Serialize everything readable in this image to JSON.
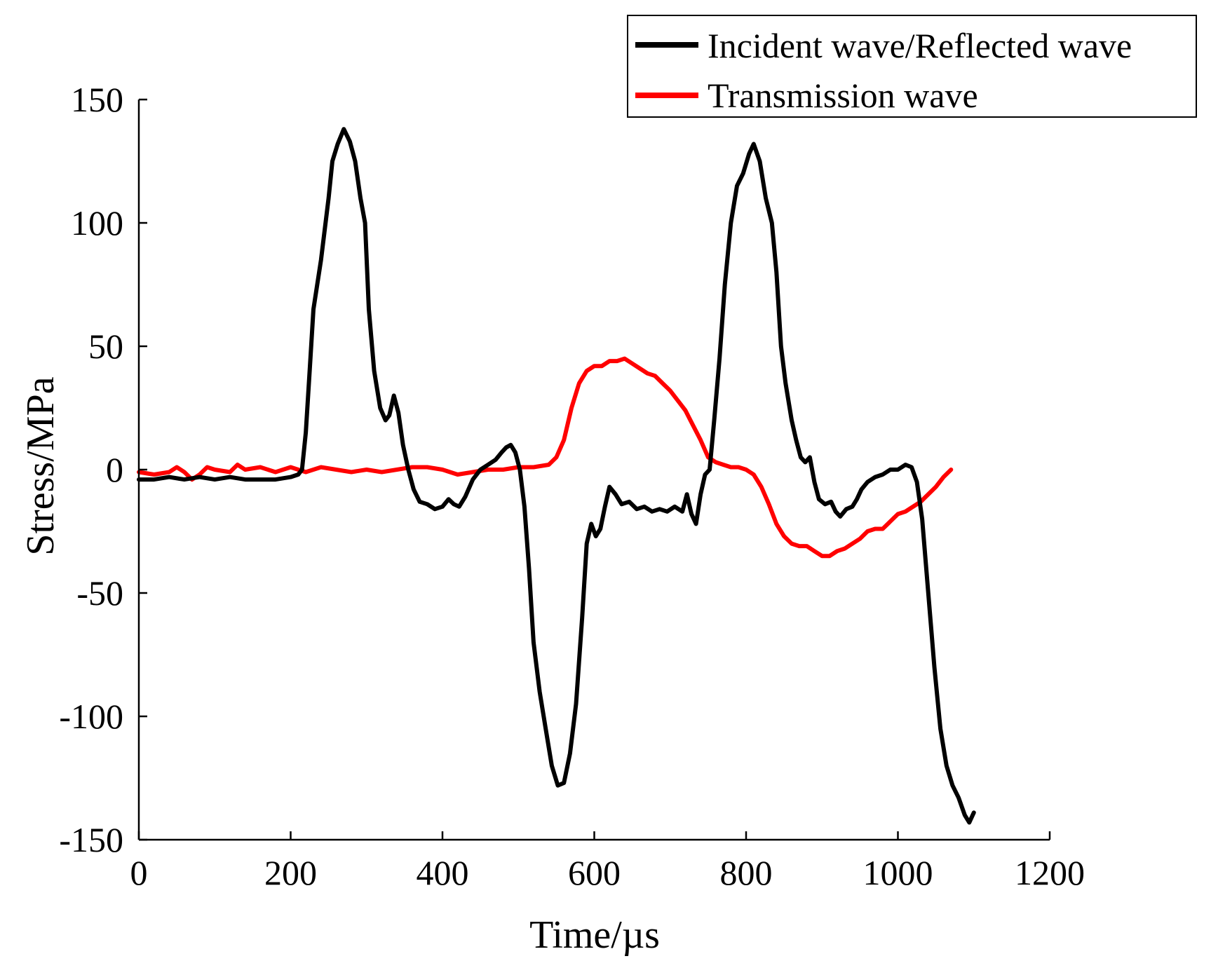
{
  "chart_data": {
    "type": "line",
    "xlabel": "Time/µs",
    "ylabel": "Stress/MPa",
    "xlim": [
      0,
      1200
    ],
    "ylim": [
      -150,
      150
    ],
    "xticks": [
      0,
      200,
      400,
      600,
      800,
      1000,
      1200
    ],
    "yticks": [
      -150,
      -100,
      -50,
      0,
      50,
      100,
      150
    ],
    "xtick_labels": [
      "0",
      "200",
      "400",
      "600",
      "800",
      "1000",
      "1200"
    ],
    "ytick_labels": [
      "-150",
      "-100",
      "-50",
      "0",
      "50",
      "100",
      "150"
    ],
    "grid": false,
    "legend_position": "top-right",
    "series": [
      {
        "name": "Incident wave/Reflected wave",
        "color": "#000000",
        "points": [
          [
            0,
            -4
          ],
          [
            20,
            -4
          ],
          [
            40,
            -3
          ],
          [
            60,
            -4
          ],
          [
            80,
            -3
          ],
          [
            100,
            -4
          ],
          [
            120,
            -3
          ],
          [
            140,
            -4
          ],
          [
            160,
            -4
          ],
          [
            180,
            -4
          ],
          [
            200,
            -3
          ],
          [
            210,
            -2
          ],
          [
            215,
            0
          ],
          [
            220,
            15
          ],
          [
            225,
            40
          ],
          [
            230,
            65
          ],
          [
            240,
            85
          ],
          [
            250,
            110
          ],
          [
            255,
            125
          ],
          [
            262,
            132
          ],
          [
            270,
            138
          ],
          [
            278,
            133
          ],
          [
            285,
            125
          ],
          [
            292,
            110
          ],
          [
            298,
            100
          ],
          [
            303,
            65
          ],
          [
            310,
            40
          ],
          [
            318,
            25
          ],
          [
            325,
            20
          ],
          [
            330,
            22
          ],
          [
            336,
            30
          ],
          [
            342,
            23
          ],
          [
            348,
            10
          ],
          [
            355,
            0
          ],
          [
            362,
            -8
          ],
          [
            370,
            -13
          ],
          [
            380,
            -14
          ],
          [
            390,
            -16
          ],
          [
            400,
            -15
          ],
          [
            408,
            -12
          ],
          [
            415,
            -14
          ],
          [
            422,
            -15
          ],
          [
            430,
            -11
          ],
          [
            440,
            -4
          ],
          [
            450,
            0
          ],
          [
            460,
            2
          ],
          [
            470,
            4
          ],
          [
            478,
            7
          ],
          [
            484,
            9
          ],
          [
            490,
            10
          ],
          [
            496,
            7
          ],
          [
            502,
            0
          ],
          [
            508,
            -15
          ],
          [
            514,
            -40
          ],
          [
            520,
            -70
          ],
          [
            528,
            -90
          ],
          [
            536,
            -105
          ],
          [
            544,
            -120
          ],
          [
            552,
            -128
          ],
          [
            560,
            -127
          ],
          [
            568,
            -115
          ],
          [
            576,
            -95
          ],
          [
            584,
            -60
          ],
          [
            590,
            -30
          ],
          [
            596,
            -22
          ],
          [
            602,
            -27
          ],
          [
            608,
            -24
          ],
          [
            614,
            -15
          ],
          [
            620,
            -7
          ],
          [
            628,
            -10
          ],
          [
            636,
            -14
          ],
          [
            646,
            -13
          ],
          [
            656,
            -16
          ],
          [
            666,
            -15
          ],
          [
            676,
            -17
          ],
          [
            686,
            -16
          ],
          [
            696,
            -17
          ],
          [
            706,
            -15
          ],
          [
            716,
            -17
          ],
          [
            722,
            -10
          ],
          [
            728,
            -18
          ],
          [
            734,
            -22
          ],
          [
            740,
            -10
          ],
          [
            746,
            -2
          ],
          [
            752,
            0
          ],
          [
            758,
            20
          ],
          [
            765,
            45
          ],
          [
            772,
            75
          ],
          [
            780,
            100
          ],
          [
            788,
            115
          ],
          [
            796,
            120
          ],
          [
            804,
            128
          ],
          [
            810,
            132
          ],
          [
            818,
            125
          ],
          [
            826,
            110
          ],
          [
            834,
            100
          ],
          [
            840,
            80
          ],
          [
            846,
            50
          ],
          [
            852,
            35
          ],
          [
            860,
            20
          ],
          [
            866,
            12
          ],
          [
            872,
            5
          ],
          [
            878,
            3
          ],
          [
            884,
            5
          ],
          [
            890,
            -5
          ],
          [
            896,
            -12
          ],
          [
            904,
            -14
          ],
          [
            912,
            -13
          ],
          [
            918,
            -17
          ],
          [
            924,
            -19
          ],
          [
            932,
            -16
          ],
          [
            940,
            -15
          ],
          [
            946,
            -12
          ],
          [
            952,
            -8
          ],
          [
            960,
            -5
          ],
          [
            970,
            -3
          ],
          [
            980,
            -2
          ],
          [
            990,
            0
          ],
          [
            1000,
            0
          ],
          [
            1010,
            2
          ],
          [
            1018,
            1
          ],
          [
            1025,
            -5
          ],
          [
            1032,
            -20
          ],
          [
            1040,
            -50
          ],
          [
            1048,
            -80
          ],
          [
            1056,
            -105
          ],
          [
            1064,
            -120
          ],
          [
            1072,
            -128
          ],
          [
            1080,
            -133
          ],
          [
            1088,
            -140
          ],
          [
            1094,
            -143
          ],
          [
            1100,
            -139
          ]
        ]
      },
      {
        "name": "Transmission wave",
        "color": "#ff0000",
        "points": [
          [
            0,
            -1
          ],
          [
            20,
            -2
          ],
          [
            40,
            -1
          ],
          [
            50,
            1
          ],
          [
            60,
            -1
          ],
          [
            70,
            -4
          ],
          [
            80,
            -2
          ],
          [
            90,
            1
          ],
          [
            100,
            0
          ],
          [
            120,
            -1
          ],
          [
            130,
            2
          ],
          [
            140,
            0
          ],
          [
            160,
            1
          ],
          [
            180,
            -1
          ],
          [
            200,
            1
          ],
          [
            220,
            -1
          ],
          [
            240,
            1
          ],
          [
            260,
            0
          ],
          [
            280,
            -1
          ],
          [
            300,
            0
          ],
          [
            320,
            -1
          ],
          [
            340,
            0
          ],
          [
            360,
            1
          ],
          [
            380,
            1
          ],
          [
            400,
            0
          ],
          [
            420,
            -2
          ],
          [
            440,
            -1
          ],
          [
            460,
            0
          ],
          [
            480,
            0
          ],
          [
            500,
            1
          ],
          [
            520,
            1
          ],
          [
            540,
            2
          ],
          [
            550,
            5
          ],
          [
            560,
            12
          ],
          [
            570,
            25
          ],
          [
            580,
            35
          ],
          [
            590,
            40
          ],
          [
            600,
            42
          ],
          [
            610,
            42
          ],
          [
            620,
            44
          ],
          [
            630,
            44
          ],
          [
            640,
            45
          ],
          [
            650,
            43
          ],
          [
            660,
            41
          ],
          [
            670,
            39
          ],
          [
            680,
            38
          ],
          [
            690,
            35
          ],
          [
            700,
            32
          ],
          [
            710,
            28
          ],
          [
            720,
            24
          ],
          [
            730,
            18
          ],
          [
            740,
            12
          ],
          [
            750,
            5
          ],
          [
            760,
            3
          ],
          [
            770,
            2
          ],
          [
            780,
            1
          ],
          [
            790,
            1
          ],
          [
            800,
            0
          ],
          [
            810,
            -2
          ],
          [
            820,
            -7
          ],
          [
            830,
            -14
          ],
          [
            840,
            -22
          ],
          [
            850,
            -27
          ],
          [
            860,
            -30
          ],
          [
            870,
            -31
          ],
          [
            880,
            -31
          ],
          [
            890,
            -33
          ],
          [
            900,
            -35
          ],
          [
            910,
            -35
          ],
          [
            920,
            -33
          ],
          [
            930,
            -32
          ],
          [
            940,
            -30
          ],
          [
            950,
            -28
          ],
          [
            960,
            -25
          ],
          [
            970,
            -24
          ],
          [
            980,
            -24
          ],
          [
            990,
            -21
          ],
          [
            1000,
            -18
          ],
          [
            1010,
            -17
          ],
          [
            1020,
            -15
          ],
          [
            1030,
            -13
          ],
          [
            1040,
            -10
          ],
          [
            1050,
            -7
          ],
          [
            1060,
            -3
          ],
          [
            1070,
            0
          ]
        ]
      }
    ]
  }
}
